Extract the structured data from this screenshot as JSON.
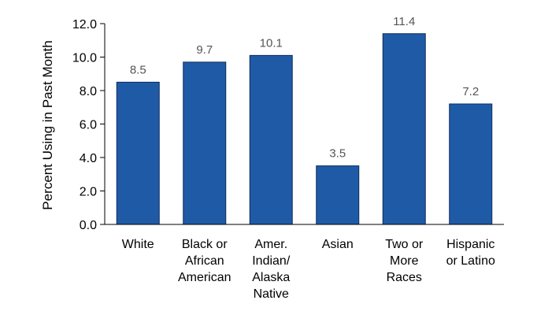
{
  "chart_data": {
    "type": "bar",
    "categories": [
      [
        "White"
      ],
      [
        "Black or",
        "African",
        "American"
      ],
      [
        "Amer.",
        "Indian/",
        "Alaska",
        "Native"
      ],
      [
        "Asian"
      ],
      [
        "Two or",
        "More",
        "Races"
      ],
      [
        "Hispanic",
        "or Latino"
      ]
    ],
    "values": [
      8.5,
      9.7,
      10.1,
      3.5,
      11.4,
      7.2
    ],
    "value_labels": [
      "8.5",
      "9.7",
      "10.1",
      "3.5",
      "11.4",
      "7.2"
    ],
    "title": "",
    "xlabel": "",
    "ylabel": "Percent Using in Past Month",
    "ylim": [
      0,
      12
    ],
    "yticks": [
      0,
      2,
      4,
      6,
      8,
      10,
      12
    ],
    "ytick_labels": [
      "0.0",
      "2.0",
      "4.0",
      "6.0",
      "8.0",
      "10.0",
      "12.0"
    ],
    "grid": false,
    "legend": "none",
    "bar_color": "#1f5aa6",
    "bar_edge_color": "#0d2d5e"
  }
}
